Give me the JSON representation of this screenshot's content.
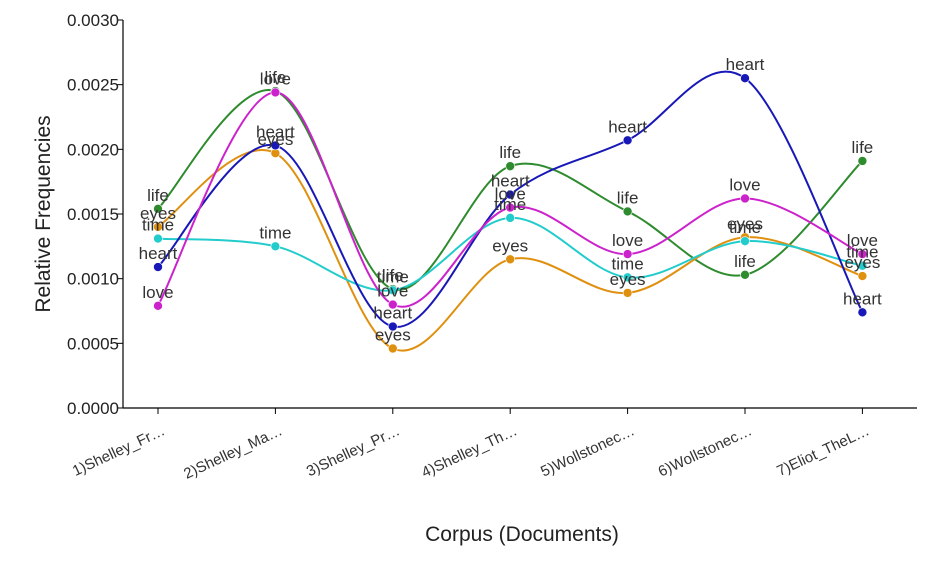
{
  "chart_data": {
    "type": "line",
    "xlabel": "Corpus (Documents)",
    "ylabel": "Relative Frequencies",
    "ylim": [
      0,
      0.003
    ],
    "yticks": [
      "0.0000",
      "0.0005",
      "0.0010",
      "0.0015",
      "0.0020",
      "0.0025",
      "0.0030"
    ],
    "grid": false,
    "categories": [
      "1)Shelley_Fr…",
      "2)Shelley_Ma…",
      "3)Shelley_Pr…",
      "4)Shelley_Th…",
      "5)Wollstonec…",
      "6)Wollstonec…",
      "7)Eliot_TheL…"
    ],
    "series": [
      {
        "name": "life",
        "color": "#2e8b2e",
        "values": [
          0.00154,
          0.00245,
          0.00092,
          0.00187,
          0.00152,
          0.00103,
          0.00191
        ]
      },
      {
        "name": "eyes",
        "color": "#e0900f",
        "values": [
          0.0014,
          0.00197,
          0.00046,
          0.00115,
          0.00089,
          0.00132,
          0.00102
        ]
      },
      {
        "name": "time",
        "color": "#22cccc",
        "values": [
          0.00131,
          0.00125,
          0.00091,
          0.00147,
          0.00101,
          0.00129,
          0.0011
        ]
      },
      {
        "name": "heart",
        "color": "#1818b8",
        "values": [
          0.00109,
          0.00203,
          0.00063,
          0.00165,
          0.00207,
          0.00255,
          0.00074
        ]
      },
      {
        "name": "love",
        "color": "#cc22cc",
        "values": [
          0.00079,
          0.00244,
          0.0008,
          0.00155,
          0.00119,
          0.00162,
          0.00119
        ]
      }
    ]
  }
}
